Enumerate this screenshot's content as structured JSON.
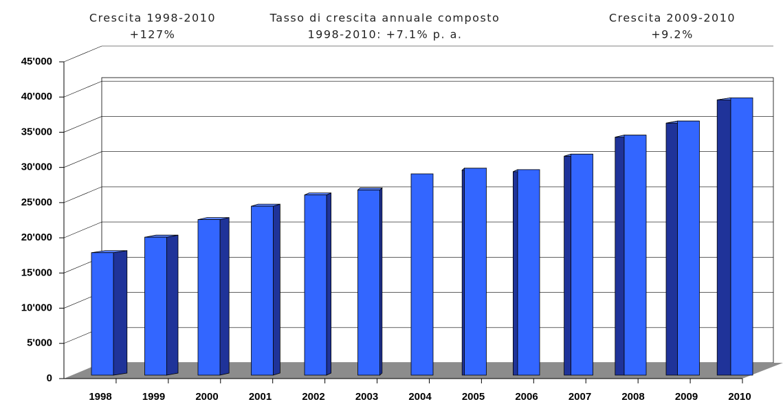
{
  "chart_data": {
    "type": "bar3d",
    "annotations": [
      [
        "Crescita 1998-2010",
        "+127%"
      ],
      [
        "Tasso di crescita annuale composto",
        "1998-2010: +7.1% p. a."
      ],
      [
        "Crescita 2009-2010",
        "+9.2%"
      ]
    ],
    "categories": [
      "1998",
      "1999",
      "2000",
      "2001",
      "2002",
      "2003",
      "2004",
      "2005",
      "2006",
      "2007",
      "2008",
      "2009",
      "2010"
    ],
    "values": [
      17400,
      19600,
      22100,
      24000,
      25600,
      26300,
      28600,
      29400,
      29200,
      31400,
      34100,
      36100,
      39400
    ],
    "color": "#3366ff",
    "ylim": [
      0,
      45000
    ],
    "yticks": [
      0,
      {
        "value": 5000,
        "label": "5'000"
      },
      {
        "value": 10000,
        "label": "10'000"
      },
      {
        "value": 15000,
        "label": "15'000"
      },
      {
        "value": 20000,
        "label": "20'000"
      },
      {
        "value": 25000,
        "label": "25'000"
      },
      {
        "value": 30000,
        "label": "30'000"
      },
      {
        "value": 35000,
        "label": "35'000"
      },
      {
        "value": 40000,
        "label": "40'000"
      },
      {
        "value": 45000,
        "label": "45'000"
      }
    ],
    "grid": true
  }
}
